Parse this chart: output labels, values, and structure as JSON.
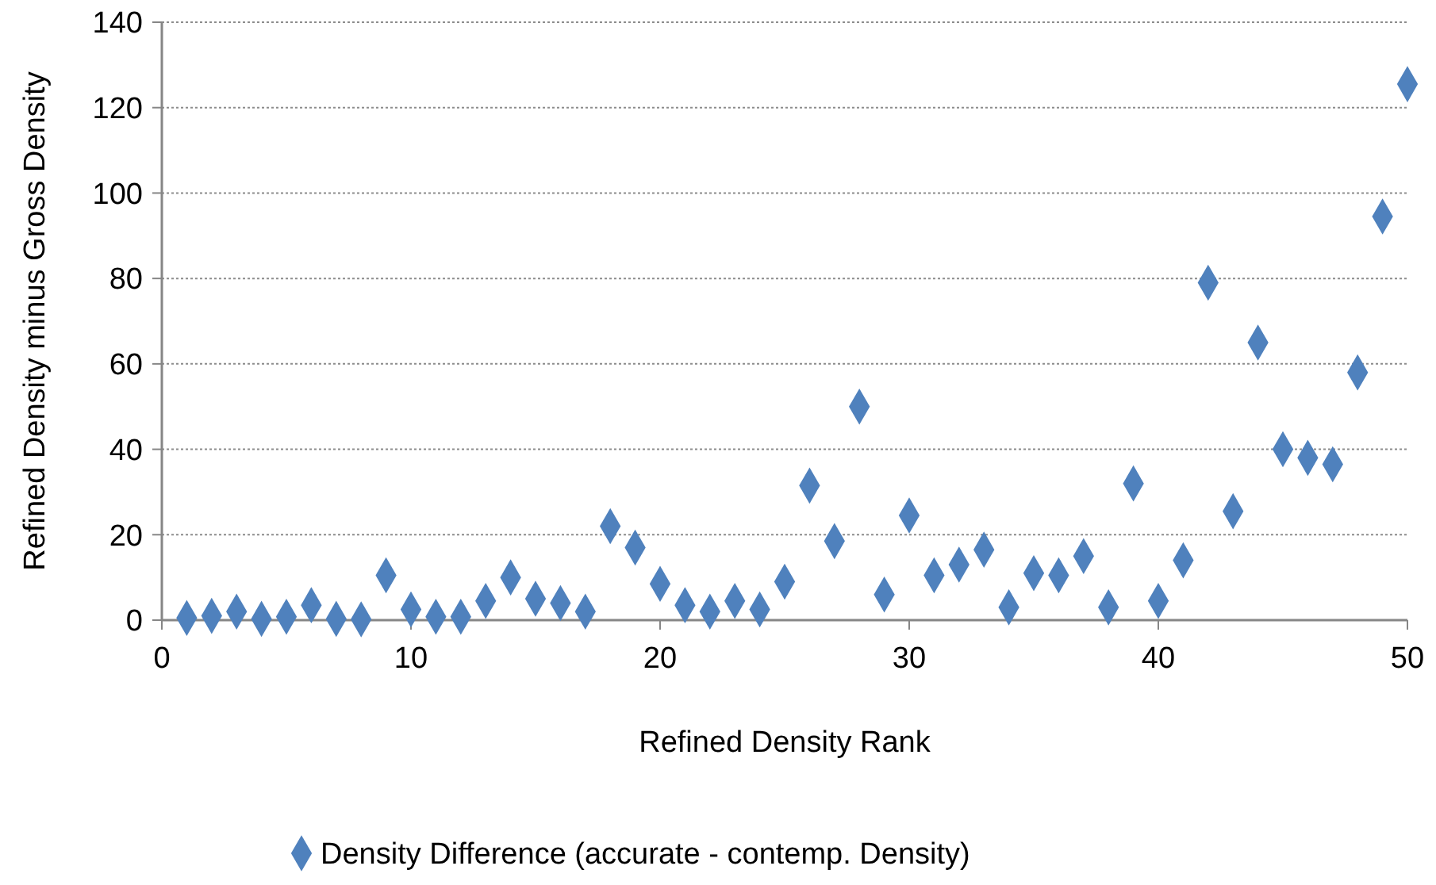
{
  "chart_data": {
    "type": "scatter",
    "xlabel": "Refined Density Rank",
    "ylabel": "Refined Density minus Gross Density",
    "x": [
      1,
      2,
      3,
      4,
      5,
      6,
      7,
      8,
      9,
      10,
      11,
      12,
      13,
      14,
      15,
      16,
      17,
      18,
      19,
      20,
      21,
      22,
      23,
      24,
      25,
      26,
      27,
      28,
      29,
      30,
      31,
      32,
      33,
      34,
      35,
      36,
      37,
      38,
      39,
      40,
      41,
      42,
      43,
      44,
      45,
      46,
      47,
      48,
      49,
      50
    ],
    "series": [
      {
        "name": "Density Difference (accurate - contemp. Density)",
        "color": "#4f81bd",
        "values": [
          0.5,
          1,
          2,
          0.3,
          0.8,
          3.5,
          0.3,
          0.2,
          10.5,
          2.5,
          0.8,
          0.8,
          4.5,
          10,
          5,
          4,
          2,
          22,
          17,
          8.5,
          3.5,
          2,
          4.5,
          2.5,
          9,
          31.5,
          18.5,
          50,
          6,
          24.5,
          10.5,
          13,
          16.5,
          3,
          11,
          10.5,
          15,
          3,
          32,
          4.5,
          14,
          79,
          25.5,
          65,
          40,
          38,
          36.5,
          58,
          94.5,
          125.5
        ]
      }
    ],
    "xlim": [
      0,
      50
    ],
    "xticks": [
      0,
      10,
      20,
      30,
      40,
      50
    ],
    "ylim": [
      0,
      140
    ],
    "yticks": [
      0,
      20,
      40,
      60,
      80,
      100,
      120,
      140
    ],
    "grid": "y",
    "legend": "bottom",
    "marker": "diamond"
  }
}
